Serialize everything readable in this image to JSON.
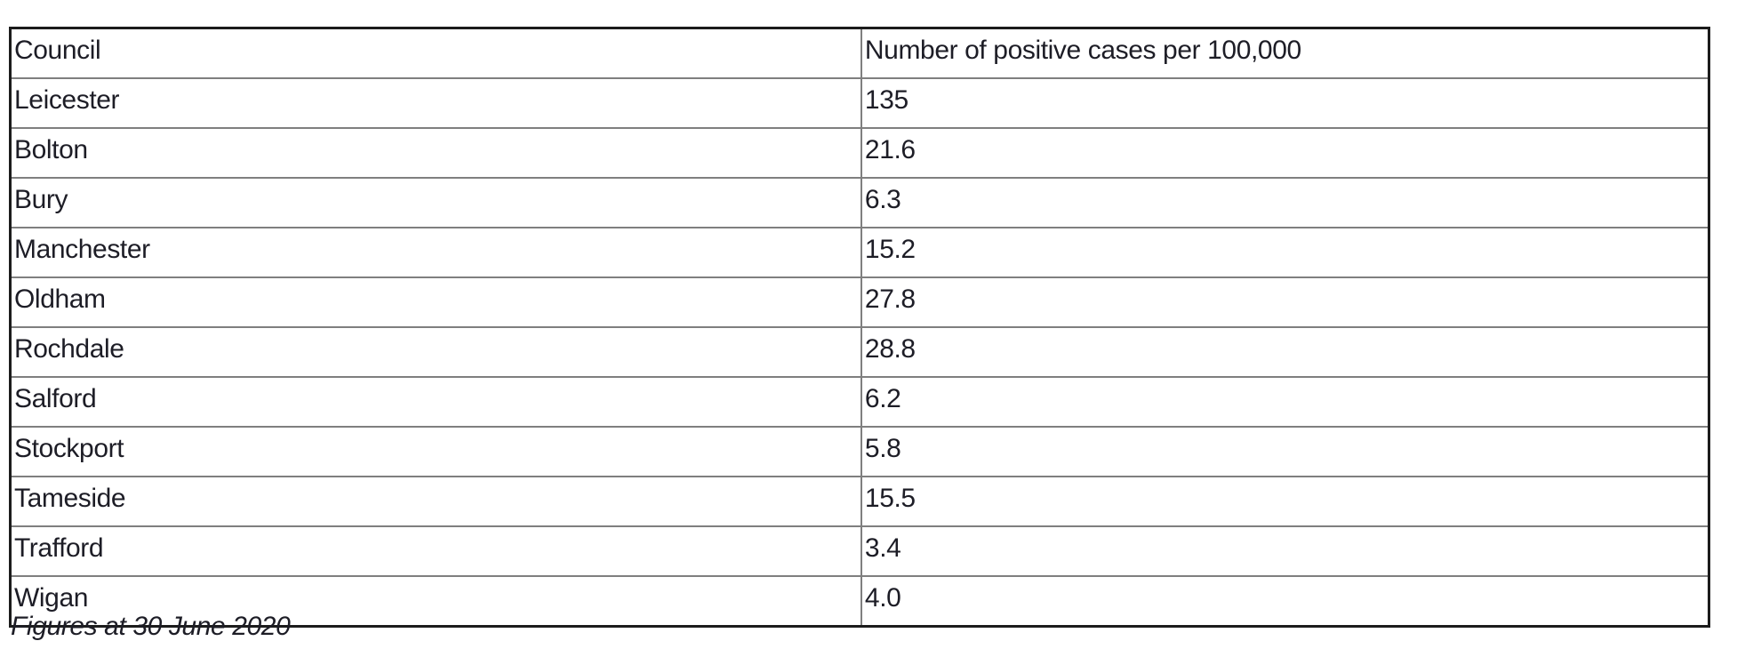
{
  "page": {
    "caption": "Figures at 30 June 2020"
  },
  "table": {
    "columns": [
      {
        "label": "Council"
      },
      {
        "label": "Number of positive cases per 100,000"
      }
    ],
    "rows": [
      {
        "council": "Leicester",
        "cases_per_100k": "135"
      },
      {
        "council": "Bolton",
        "cases_per_100k": "21.6"
      },
      {
        "council": "Bury",
        "cases_per_100k": "6.3"
      },
      {
        "council": "Manchester",
        "cases_per_100k": "15.2"
      },
      {
        "council": "Oldham",
        "cases_per_100k": "27.8"
      },
      {
        "council": "Rochdale",
        "cases_per_100k": "28.8"
      },
      {
        "council": "Salford",
        "cases_per_100k": "6.2"
      },
      {
        "council": "Stockport",
        "cases_per_100k": "5.8"
      },
      {
        "council": "Tameside",
        "cases_per_100k": "15.5"
      },
      {
        "council": "Trafford",
        "cases_per_100k": "3.4"
      },
      {
        "council": "Wigan",
        "cases_per_100k": "4.0"
      }
    ]
  },
  "colors": {
    "outer_border": "#1c1c1c",
    "inner_border": "#7f7f7f",
    "text": "#1d1d26",
    "background": "#ffffff"
  }
}
